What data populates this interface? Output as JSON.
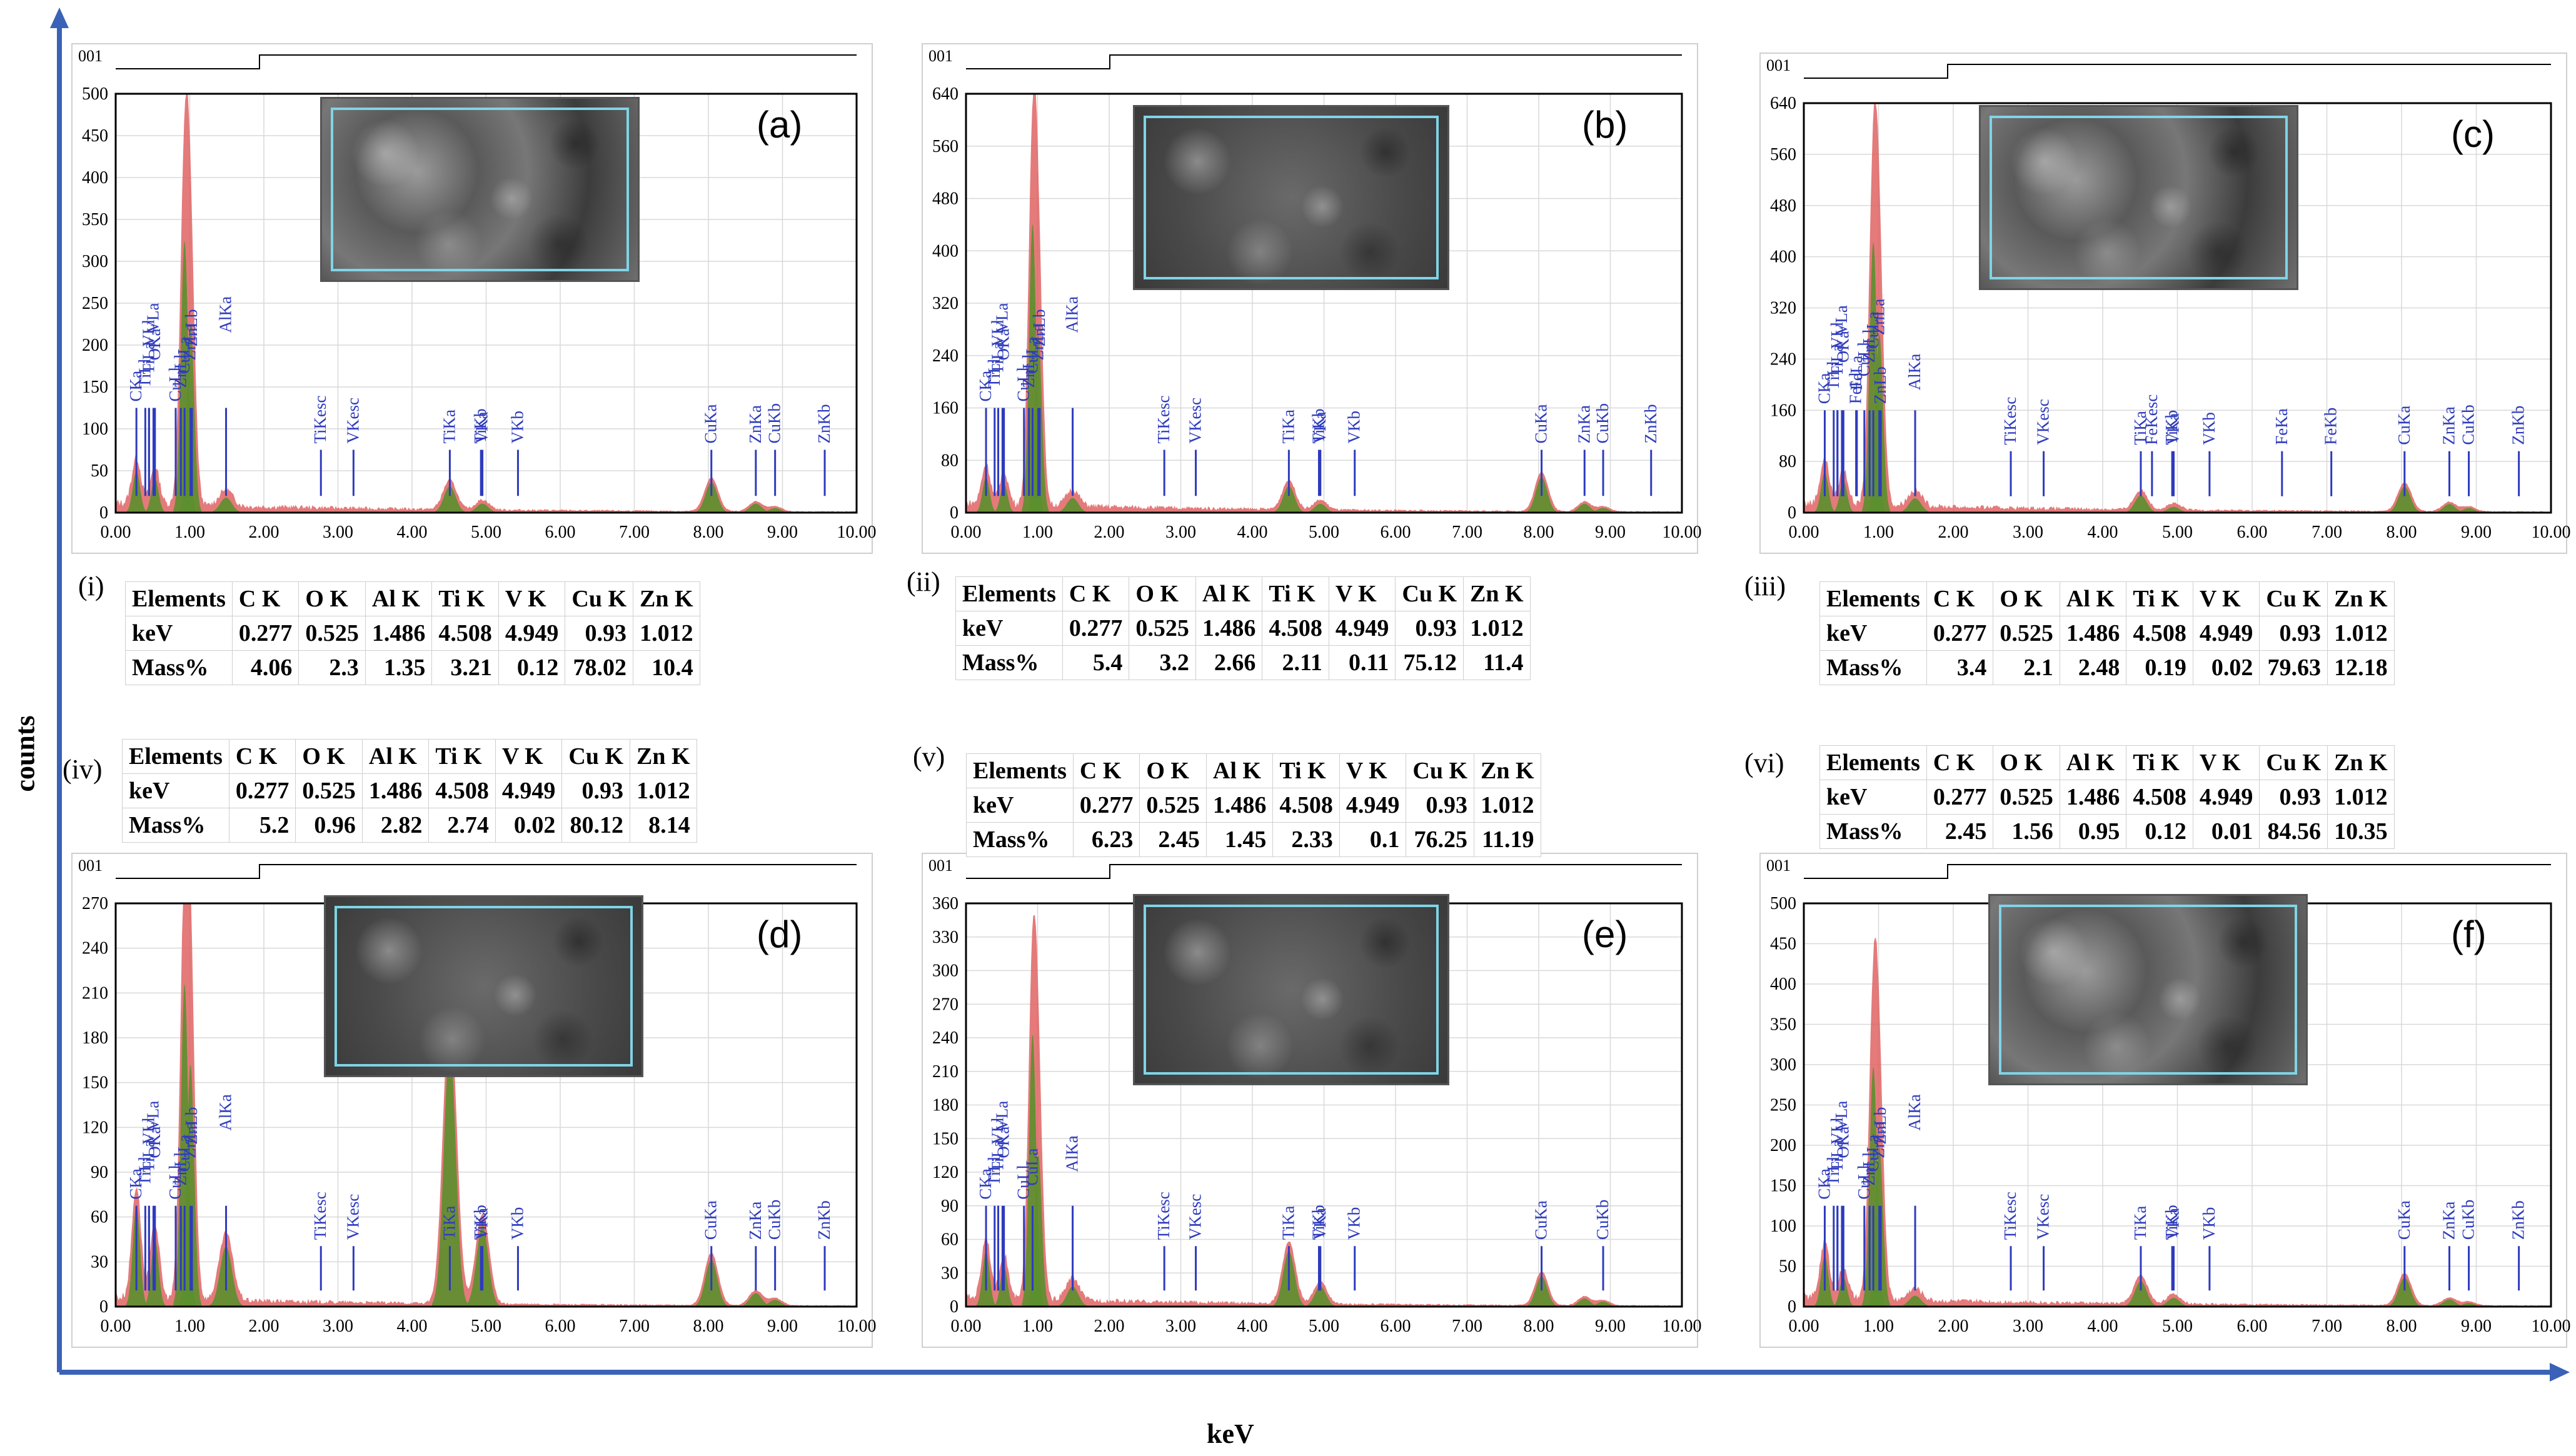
{
  "figure": {
    "y_axis_label": "counts",
    "x_axis_label": "keV",
    "axis_color": "#3a62b8",
    "spectrum_red": "#e06363",
    "spectrum_green": "#5b8f2e",
    "peak_label_color": "#2e3bbd"
  },
  "tables": [
    {
      "roman": "(i)",
      "header": [
        "Elements",
        "C K",
        "O K",
        "Al K",
        "Ti K",
        "V K",
        "Cu K",
        "Zn K"
      ],
      "kev": [
        "keV",
        "0.277",
        "0.525",
        "1.486",
        "4.508",
        "4.949",
        "0.93",
        "1.012"
      ],
      "mass": [
        "Mass%",
        "4.06",
        "2.3",
        "1.35",
        "3.21",
        "0.12",
        "78.02",
        "10.4"
      ]
    },
    {
      "roman": "(ii)",
      "header": [
        "Elements",
        "C K",
        "O K",
        "Al K",
        "Ti K",
        "V K",
        "Cu K",
        "Zn K"
      ],
      "kev": [
        "keV",
        "0.277",
        "0.525",
        "1.486",
        "4.508",
        "4.949",
        "0.93",
        "1.012"
      ],
      "mass": [
        "Mass%",
        "5.4",
        "3.2",
        "2.66",
        "2.11",
        "0.11",
        "75.12",
        "11.4"
      ]
    },
    {
      "roman": "(iii)",
      "header": [
        "Elements",
        "C K",
        "O K",
        "Al K",
        "Ti K",
        "V K",
        "Cu K",
        "Zn K"
      ],
      "kev": [
        "keV",
        "0.277",
        "0.525",
        "1.486",
        "4.508",
        "4.949",
        "0.93",
        "1.012"
      ],
      "mass": [
        "Mass%",
        "3.4",
        "2.1",
        "2.48",
        "0.19",
        "0.02",
        "79.63",
        "12.18"
      ]
    },
    {
      "roman": "(iv)",
      "header": [
        "Elements",
        "C K",
        "O K",
        "Al K",
        "Ti K",
        "V K",
        "Cu K",
        "Zn K"
      ],
      "kev": [
        "keV",
        "0.277",
        "0.525",
        "1.486",
        "4.508",
        "4.949",
        "0.93",
        "1.012"
      ],
      "mass": [
        "Mass%",
        "5.2",
        "0.96",
        "2.82",
        "2.74",
        "0.02",
        "80.12",
        "8.14"
      ]
    },
    {
      "roman": "(v)",
      "header": [
        "Elements",
        "C K",
        "O K",
        "Al K",
        "Ti K",
        "V K",
        "Cu K",
        "Zn K"
      ],
      "kev": [
        "keV",
        "0.277",
        "0.525",
        "1.486",
        "4.508",
        "4.949",
        "0.93",
        "1.012"
      ],
      "mass": [
        "Mass%",
        "6.23",
        "2.45",
        "1.45",
        "2.33",
        "0.1",
        "76.25",
        "11.19"
      ]
    },
    {
      "roman": "(vi)",
      "header": [
        "Elements",
        "C K",
        "O K",
        "Al K",
        "Ti K",
        "V K",
        "Cu K",
        "Zn K"
      ],
      "kev": [
        "keV",
        "0.277",
        "0.525",
        "1.486",
        "4.508",
        "4.949",
        "0.93",
        "1.012"
      ],
      "mass": [
        "Mass%",
        "2.45",
        "1.56",
        "0.95",
        "0.12",
        "0.01",
        "84.56",
        "10.35"
      ]
    }
  ],
  "chart_data": [
    {
      "type": "area",
      "letter": "(a)",
      "tag": "001",
      "xlim": [
        0,
        10
      ],
      "ylim": [
        0,
        500
      ],
      "yticks": [
        "0",
        "50",
        "100",
        "150",
        "200",
        "250",
        "300",
        "350",
        "400",
        "450",
        "500"
      ],
      "xticks": [
        "0.00",
        "1.00",
        "2.00",
        "3.00",
        "4.00",
        "5.00",
        "6.00",
        "7.00",
        "8.00",
        "9.00",
        "10.00"
      ],
      "peaks": [
        {
          "x": 0.28,
          "y": 55
        },
        {
          "x": 0.53,
          "y": 45
        },
        {
          "x": 0.93,
          "y": 360
        },
        {
          "x": 1.01,
          "y": 250
        },
        {
          "x": 1.49,
          "y": 20
        },
        {
          "x": 4.51,
          "y": 35
        },
        {
          "x": 4.95,
          "y": 12
        },
        {
          "x": 8.04,
          "y": 40
        },
        {
          "x": 8.64,
          "y": 12
        },
        {
          "x": 8.9,
          "y": 6
        }
      ],
      "labels": [
        {
          "text": "CKa",
          "x": 0.28
        },
        {
          "text": "TiLl",
          "x": 0.4
        },
        {
          "text": "TiLa",
          "x": 0.45
        },
        {
          "text": "OKa",
          "x": 0.53
        },
        {
          "text": "VLl",
          "x": 0.45
        },
        {
          "text": "VLa",
          "x": 0.51
        },
        {
          "text": "CuLl",
          "x": 0.81
        },
        {
          "text": "ZnLl",
          "x": 0.88
        },
        {
          "text": "CuLa",
          "x": 0.93
        },
        {
          "text": "ZnLa",
          "x": 1.01
        },
        {
          "text": "ZnLb",
          "x": 1.03
        },
        {
          "text": "AlKa",
          "x": 1.49
        },
        {
          "text": "TiKesc",
          "x": 2.77
        },
        {
          "text": "VKesc",
          "x": 3.21
        },
        {
          "text": "TiKa",
          "x": 4.51
        },
        {
          "text": "TiKb",
          "x": 4.93
        },
        {
          "text": "VKa",
          "x": 4.95
        },
        {
          "text": "VKb",
          "x": 5.43
        },
        {
          "text": "CuKa",
          "x": 8.04
        },
        {
          "text": "ZnKa",
          "x": 8.64
        },
        {
          "text": "CuKb",
          "x": 8.9
        },
        {
          "text": "ZnKb",
          "x": 9.57
        }
      ]
    },
    {
      "type": "area",
      "letter": "(b)",
      "tag": "001",
      "xlim": [
        0,
        10
      ],
      "ylim": [
        0,
        640
      ],
      "yticks": [
        "0",
        "80",
        "160",
        "240",
        "320",
        "400",
        "480",
        "560",
        "640"
      ],
      "xticks": [
        "0.00",
        "1.00",
        "2.00",
        "3.00",
        "4.00",
        "5.00",
        "6.00",
        "7.00",
        "8.00",
        "9.00",
        "10.00"
      ],
      "peaks": [
        {
          "x": 0.28,
          "y": 60
        },
        {
          "x": 0.53,
          "y": 50
        },
        {
          "x": 0.93,
          "y": 490
        },
        {
          "x": 1.01,
          "y": 300
        },
        {
          "x": 1.49,
          "y": 25
        },
        {
          "x": 4.51,
          "y": 45
        },
        {
          "x": 4.95,
          "y": 15
        },
        {
          "x": 8.04,
          "y": 60
        },
        {
          "x": 8.64,
          "y": 15
        },
        {
          "x": 8.9,
          "y": 8
        }
      ],
      "labels": [
        {
          "text": "CKa",
          "x": 0.28
        },
        {
          "text": "TiLl",
          "x": 0.4
        },
        {
          "text": "TiLa",
          "x": 0.45
        },
        {
          "text": "OKa",
          "x": 0.53
        },
        {
          "text": "VLl",
          "x": 0.45
        },
        {
          "text": "VLa",
          "x": 0.51
        },
        {
          "text": "CuLl",
          "x": 0.81
        },
        {
          "text": "ZnLl",
          "x": 0.88
        },
        {
          "text": "CuLa",
          "x": 0.93
        },
        {
          "text": "ZnLa",
          "x": 1.01
        },
        {
          "text": "ZnLb",
          "x": 1.03
        },
        {
          "text": "AlKa",
          "x": 1.49
        },
        {
          "text": "TiKesc",
          "x": 2.77
        },
        {
          "text": "VKesc",
          "x": 3.21
        },
        {
          "text": "TiKa",
          "x": 4.51
        },
        {
          "text": "TiKb",
          "x": 4.93
        },
        {
          "text": "VKa",
          "x": 4.95
        },
        {
          "text": "VKb",
          "x": 5.43
        },
        {
          "text": "CuKa",
          "x": 8.04
        },
        {
          "text": "ZnKa",
          "x": 8.64
        },
        {
          "text": "CuKb",
          "x": 8.9
        },
        {
          "text": "ZnKb",
          "x": 9.57
        }
      ]
    },
    {
      "type": "area",
      "letter": "(c)",
      "tag": "001",
      "xlim": [
        0,
        10
      ],
      "ylim": [
        0,
        640
      ],
      "yticks": [
        "0",
        "80",
        "160",
        "240",
        "320",
        "400",
        "480",
        "560",
        "640"
      ],
      "xticks": [
        "0.00",
        "1.00",
        "2.00",
        "3.00",
        "4.00",
        "5.00",
        "6.00",
        "7.00",
        "8.00",
        "9.00",
        "10.00"
      ],
      "peaks": [
        {
          "x": 0.28,
          "y": 70
        },
        {
          "x": 0.53,
          "y": 55
        },
        {
          "x": 0.93,
          "y": 470
        },
        {
          "x": 1.01,
          "y": 310
        },
        {
          "x": 1.49,
          "y": 25
        },
        {
          "x": 4.51,
          "y": 30
        },
        {
          "x": 4.95,
          "y": 10
        },
        {
          "x": 8.04,
          "y": 45
        },
        {
          "x": 8.64,
          "y": 15
        },
        {
          "x": 8.9,
          "y": 8
        }
      ],
      "labels": [
        {
          "text": "CKa",
          "x": 0.28
        },
        {
          "text": "TiLl",
          "x": 0.4
        },
        {
          "text": "TiLa",
          "x": 0.45
        },
        {
          "text": "OKa",
          "x": 0.53
        },
        {
          "text": "VLl",
          "x": 0.45
        },
        {
          "text": "VLa",
          "x": 0.51
        },
        {
          "text": "FeLl",
          "x": 0.7
        },
        {
          "text": "FeLa",
          "x": 0.71
        },
        {
          "text": "CuLl",
          "x": 0.81
        },
        {
          "text": "ZnLl",
          "x": 0.88
        },
        {
          "text": "CuLa",
          "x": 0.93
        },
        {
          "text": "ZnLa",
          "x": 1.01
        },
        {
          "text": "ZnLb",
          "x": 1.03
        },
        {
          "text": "AlKa",
          "x": 1.49
        },
        {
          "text": "TiKesc",
          "x": 2.77
        },
        {
          "text": "VKesc",
          "x": 3.21
        },
        {
          "text": "FeKesc",
          "x": 4.66
        },
        {
          "text": "TiKa",
          "x": 4.51
        },
        {
          "text": "TiKb",
          "x": 4.93
        },
        {
          "text": "VKa",
          "x": 4.95
        },
        {
          "text": "VKb",
          "x": 5.43
        },
        {
          "text": "FeKa",
          "x": 6.4
        },
        {
          "text": "FeKb",
          "x": 7.06
        },
        {
          "text": "CuKa",
          "x": 8.04
        },
        {
          "text": "ZnKa",
          "x": 8.64
        },
        {
          "text": "CuKb",
          "x": 8.9
        },
        {
          "text": "ZnKb",
          "x": 9.57
        }
      ]
    },
    {
      "type": "area",
      "letter": "(d)",
      "tag": "001",
      "xlim": [
        0,
        10
      ],
      "ylim": [
        0,
        270
      ],
      "yticks": [
        "0",
        "30",
        "60",
        "90",
        "120",
        "150",
        "180",
        "210",
        "240",
        "270"
      ],
      "xticks": [
        "0.00",
        "1.00",
        "2.00",
        "3.00",
        "4.00",
        "5.00",
        "6.00",
        "7.00",
        "8.00",
        "9.00",
        "10.00"
      ],
      "peaks": [
        {
          "x": 0.28,
          "y": 75
        },
        {
          "x": 0.53,
          "y": 50
        },
        {
          "x": 0.93,
          "y": 240
        },
        {
          "x": 1.01,
          "y": 180
        },
        {
          "x": 1.49,
          "y": 45
        },
        {
          "x": 4.51,
          "y": 195
        },
        {
          "x": 4.95,
          "y": 60
        },
        {
          "x": 8.04,
          "y": 35
        },
        {
          "x": 8.64,
          "y": 10
        },
        {
          "x": 8.9,
          "y": 5
        }
      ],
      "labels": [
        {
          "text": "CKa",
          "x": 0.28
        },
        {
          "text": "TiLl",
          "x": 0.4
        },
        {
          "text": "TiLa",
          "x": 0.45
        },
        {
          "text": "OKa",
          "x": 0.53
        },
        {
          "text": "VLl",
          "x": 0.45
        },
        {
          "text": "VLa",
          "x": 0.51
        },
        {
          "text": "CuLl",
          "x": 0.81
        },
        {
          "text": "ZnLl",
          "x": 0.88
        },
        {
          "text": "CuLa",
          "x": 0.93
        },
        {
          "text": "ZnLa",
          "x": 1.01
        },
        {
          "text": "ZnLb",
          "x": 1.03
        },
        {
          "text": "AlKa",
          "x": 1.49
        },
        {
          "text": "TiKesc",
          "x": 2.77
        },
        {
          "text": "VKesc",
          "x": 3.21
        },
        {
          "text": "TiKa",
          "x": 4.51
        },
        {
          "text": "TiKb",
          "x": 4.93
        },
        {
          "text": "VKa",
          "x": 4.95
        },
        {
          "text": "VKb",
          "x": 5.43
        },
        {
          "text": "CuKa",
          "x": 8.04
        },
        {
          "text": "ZnKa",
          "x": 8.64
        },
        {
          "text": "CuKb",
          "x": 8.9
        },
        {
          "text": "ZnKb",
          "x": 9.57
        }
      ]
    },
    {
      "type": "area",
      "letter": "(e)",
      "tag": "001",
      "xlim": [
        0,
        10
      ],
      "ylim": [
        0,
        360
      ],
      "yticks": [
        "0",
        "30",
        "60",
        "90",
        "120",
        "150",
        "180",
        "210",
        "240",
        "270",
        "300",
        "330",
        "360"
      ],
      "xticks": [
        "0.00",
        "1.00",
        "2.00",
        "3.00",
        "4.00",
        "5.00",
        "6.00",
        "7.00",
        "8.00",
        "9.00",
        "10.00"
      ],
      "peaks": [
        {
          "x": 0.28,
          "y": 55
        },
        {
          "x": 0.53,
          "y": 40
        },
        {
          "x": 0.93,
          "y": 270
        },
        {
          "x": 1.01,
          "y": 150
        },
        {
          "x": 1.49,
          "y": 20
        },
        {
          "x": 4.51,
          "y": 55
        },
        {
          "x": 4.95,
          "y": 20
        },
        {
          "x": 8.04,
          "y": 30
        },
        {
          "x": 8.64,
          "y": 8
        },
        {
          "x": 8.9,
          "y": 5
        }
      ],
      "labels": [
        {
          "text": "CKa",
          "x": 0.28
        },
        {
          "text": "TiLl",
          "x": 0.4
        },
        {
          "text": "TiLa",
          "x": 0.45
        },
        {
          "text": "OKa",
          "x": 0.53
        },
        {
          "text": "VLl",
          "x": 0.45
        },
        {
          "text": "VLa",
          "x": 0.51
        },
        {
          "text": "CuLl",
          "x": 0.81
        },
        {
          "text": "CuLa",
          "x": 0.93
        },
        {
          "text": "AlKa",
          "x": 1.49
        },
        {
          "text": "TiKesc",
          "x": 2.77
        },
        {
          "text": "VKesc",
          "x": 3.21
        },
        {
          "text": "TiKa",
          "x": 4.51
        },
        {
          "text": "TiKb",
          "x": 4.93
        },
        {
          "text": "VKa",
          "x": 4.95
        },
        {
          "text": "VKb",
          "x": 5.43
        },
        {
          "text": "CuKa",
          "x": 8.04
        },
        {
          "text": "CuKb",
          "x": 8.9
        }
      ]
    },
    {
      "type": "area",
      "letter": "(f)",
      "tag": "001",
      "xlim": [
        0,
        10
      ],
      "ylim": [
        0,
        500
      ],
      "yticks": [
        "0",
        "50",
        "100",
        "150",
        "200",
        "250",
        "300",
        "350",
        "400",
        "450",
        "500"
      ],
      "xticks": [
        "0.00",
        "1.00",
        "2.00",
        "3.00",
        "4.00",
        "5.00",
        "6.00",
        "7.00",
        "8.00",
        "9.00",
        "10.00"
      ],
      "peaks": [
        {
          "x": 0.28,
          "y": 70
        },
        {
          "x": 0.53,
          "y": 40
        },
        {
          "x": 0.93,
          "y": 330
        },
        {
          "x": 1.01,
          "y": 220
        },
        {
          "x": 1.49,
          "y": 15
        },
        {
          "x": 4.51,
          "y": 35
        },
        {
          "x": 4.95,
          "y": 12
        },
        {
          "x": 8.04,
          "y": 40
        },
        {
          "x": 8.64,
          "y": 10
        },
        {
          "x": 8.9,
          "y": 5
        }
      ],
      "labels": [
        {
          "text": "CKa",
          "x": 0.28
        },
        {
          "text": "TiLl",
          "x": 0.4
        },
        {
          "text": "TiLa",
          "x": 0.45
        },
        {
          "text": "OKa",
          "x": 0.53
        },
        {
          "text": "VLl",
          "x": 0.45
        },
        {
          "text": "VLa",
          "x": 0.51
        },
        {
          "text": "CuLl",
          "x": 0.81
        },
        {
          "text": "ZnLl",
          "x": 0.88
        },
        {
          "text": "CuLa",
          "x": 0.93
        },
        {
          "text": "ZnLa",
          "x": 1.01
        },
        {
          "text": "ZnLb",
          "x": 1.03
        },
        {
          "text": "AlKa",
          "x": 1.49
        },
        {
          "text": "TiKesc",
          "x": 2.77
        },
        {
          "text": "VKesc",
          "x": 3.21
        },
        {
          "text": "TiKa",
          "x": 4.51
        },
        {
          "text": "TiKb",
          "x": 4.93
        },
        {
          "text": "VKa",
          "x": 4.95
        },
        {
          "text": "VKb",
          "x": 5.43
        },
        {
          "text": "CuKa",
          "x": 8.04
        },
        {
          "text": "ZnKa",
          "x": 8.64
        },
        {
          "text": "CuKb",
          "x": 8.9
        },
        {
          "text": "ZnKb",
          "x": 9.57
        }
      ]
    }
  ]
}
